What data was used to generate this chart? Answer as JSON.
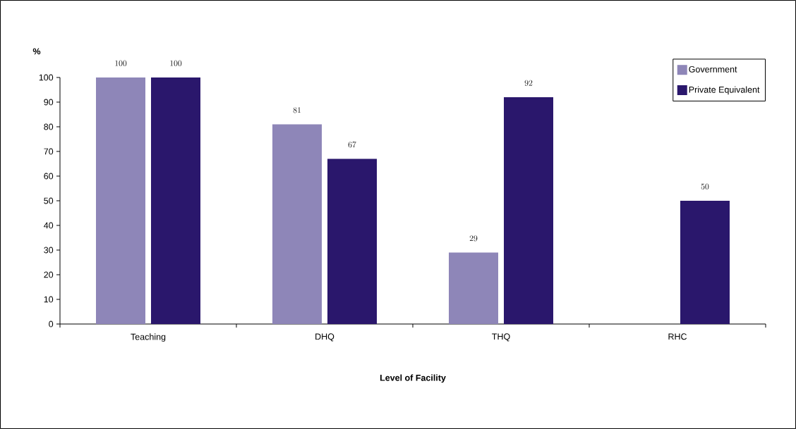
{
  "chart_data": {
    "type": "bar",
    "xlabel": "Level of Facility",
    "ylabel": "%",
    "categories": [
      "Teaching",
      "DHQ",
      "THQ",
      "RHC"
    ],
    "series": [
      {
        "name": "Government",
        "color": "#8e86b8",
        "values": [
          100,
          81,
          29,
          null
        ]
      },
      {
        "name": "Private Equivalent",
        "color": "#2a176c",
        "values": [
          100,
          67,
          92,
          50
        ]
      }
    ],
    "ylim": [
      0,
      100
    ],
    "yticks": [
      0,
      10,
      20,
      30,
      40,
      50,
      60,
      70,
      80,
      90,
      100
    ],
    "data_labels": true,
    "legend": "top right",
    "grid": false
  }
}
